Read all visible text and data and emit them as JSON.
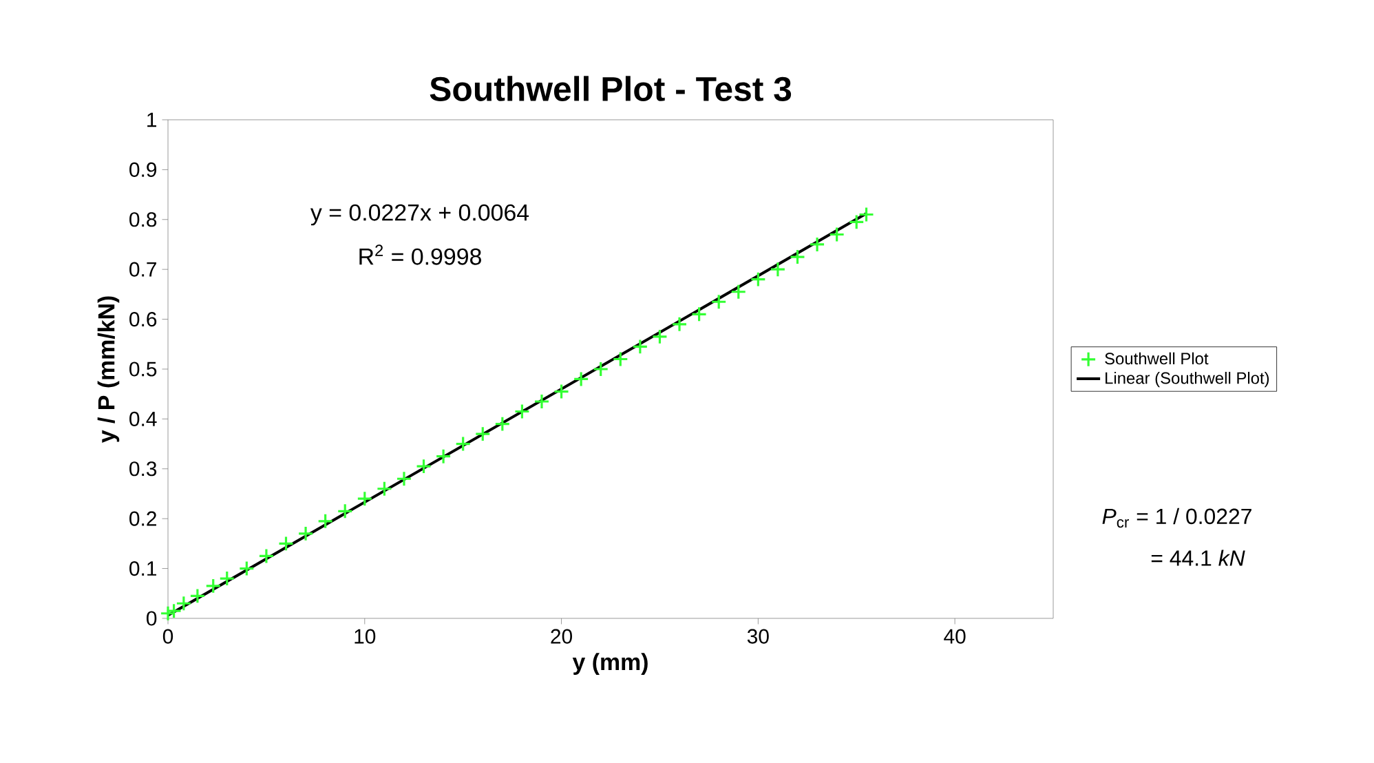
{
  "chart_data": {
    "type": "scatter",
    "title": "Southwell Plot - Test 3",
    "xlabel": "y (mm)",
    "ylabel": "y / P (mm/kN)",
    "xlim": [
      0,
      45
    ],
    "xticks": [
      0,
      10,
      20,
      30,
      40
    ],
    "ylim": [
      0,
      1
    ],
    "yticks": [
      0,
      0.1,
      0.2,
      0.3,
      0.4,
      0.5,
      0.6,
      0.7,
      0.8,
      0.9,
      1
    ],
    "legend": "right",
    "grid": false,
    "series": [
      {
        "name": "Southwell Plot",
        "color": "#33ff33",
        "marker": "cross",
        "x": [
          0,
          0.3,
          0.8,
          1.5,
          2.3,
          3,
          4,
          5,
          6,
          7,
          8,
          9,
          10,
          11,
          12,
          13,
          14,
          15,
          16,
          17,
          18,
          19,
          20,
          21,
          22,
          23,
          24,
          25,
          26,
          27,
          28,
          29,
          30,
          31,
          32,
          33,
          34,
          35,
          35.5
        ],
        "values": [
          0.01,
          0.015,
          0.03,
          0.045,
          0.065,
          0.08,
          0.1,
          0.125,
          0.15,
          0.17,
          0.195,
          0.215,
          0.24,
          0.26,
          0.28,
          0.305,
          0.325,
          0.35,
          0.37,
          0.39,
          0.415,
          0.435,
          0.455,
          0.48,
          0.5,
          0.52,
          0.545,
          0.565,
          0.59,
          0.61,
          0.635,
          0.655,
          0.68,
          0.7,
          0.725,
          0.75,
          0.77,
          0.795,
          0.81
        ]
      },
      {
        "name": "Linear (Southwell Plot)",
        "type": "line",
        "color": "#000000",
        "marker": "none",
        "x": [
          0,
          35.5
        ],
        "values": [
          0.006,
          0.812
        ]
      }
    ],
    "annotations": [
      "y = 0.0227x + 0.0064",
      "R$^{2}$ = 0.9998",
      "*P*$_{cr}$ = 1 / 0.0227",
      "= 44.1 *kN*"
    ]
  }
}
